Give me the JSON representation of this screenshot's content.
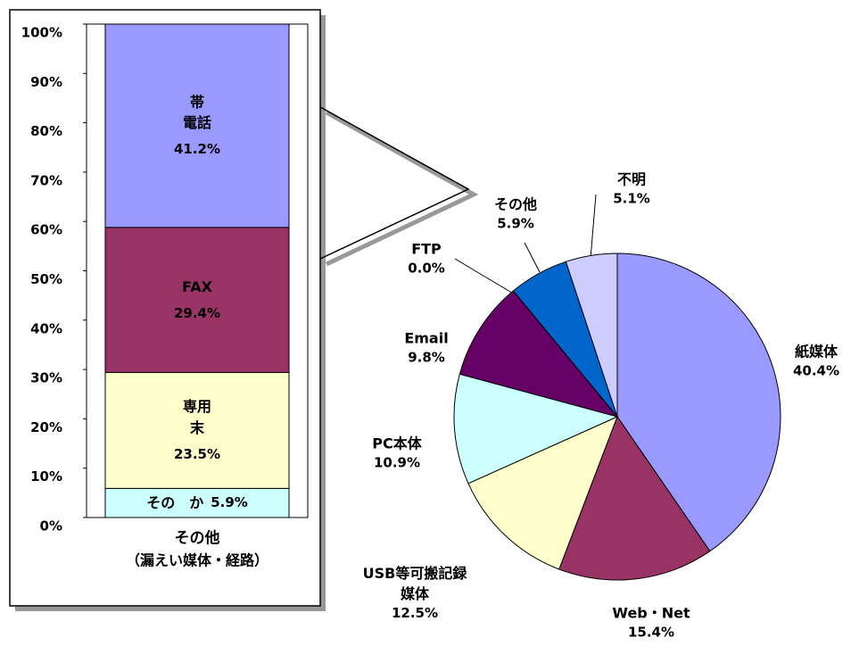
{
  "chart_data": [
    {
      "type": "bar",
      "stacked": true,
      "categories": [
        "その他"
      ],
      "xlabel": "（漏えい媒体・経路）",
      "ylim": [
        0,
        100
      ],
      "yticks": [
        {
          "value": 0,
          "label": "0%"
        },
        {
          "value": 10,
          "label": "10%"
        },
        {
          "value": 20,
          "label": "20%"
        },
        {
          "value": 30,
          "label": "30%"
        },
        {
          "value": 40,
          "label": "40%"
        },
        {
          "value": 50,
          "label": "50%"
        },
        {
          "value": 60,
          "label": "60%"
        },
        {
          "value": 70,
          "label": "70%"
        },
        {
          "value": 80,
          "label": "80%"
        },
        {
          "value": 90,
          "label": "90%"
        },
        {
          "value": 100,
          "label": "100%"
        }
      ],
      "series": [
        {
          "name": "その　か",
          "color": "#ccffff",
          "values": [
            5.9
          ],
          "value_labels": [
            "5.9%"
          ]
        },
        {
          "name": "専用\n末",
          "color": "#ffffcc",
          "values": [
            23.5
          ],
          "value_labels": [
            "23.5%"
          ]
        },
        {
          "name": "FAX",
          "color": "#993366",
          "values": [
            29.4
          ],
          "value_labels": [
            "29.4%"
          ]
        },
        {
          "name": "帯\n電話",
          "color": "#9999ff",
          "values": [
            41.2
          ],
          "value_labels": [
            "41.2%"
          ]
        }
      ]
    },
    {
      "type": "pie",
      "categories": [
        "紙媒体",
        "Web・Net",
        "USB等可搬記録\n媒体",
        "PC本体",
        "Email",
        "FTP",
        "その他",
        "不明"
      ],
      "values": [
        40.4,
        15.4,
        12.5,
        10.9,
        9.8,
        0.0,
        5.9,
        5.1
      ],
      "value_labels": [
        "40.4%",
        "15.4%",
        "12.5%",
        "10.9%",
        "9.8%",
        "0.0%",
        "5.9%",
        "5.1%"
      ],
      "colors": [
        "#9999ff",
        "#993366",
        "#ffffcc",
        "#ccffff",
        "#660066",
        "#ff8080",
        "#0066cc",
        "#ccccff"
      ]
    }
  ]
}
